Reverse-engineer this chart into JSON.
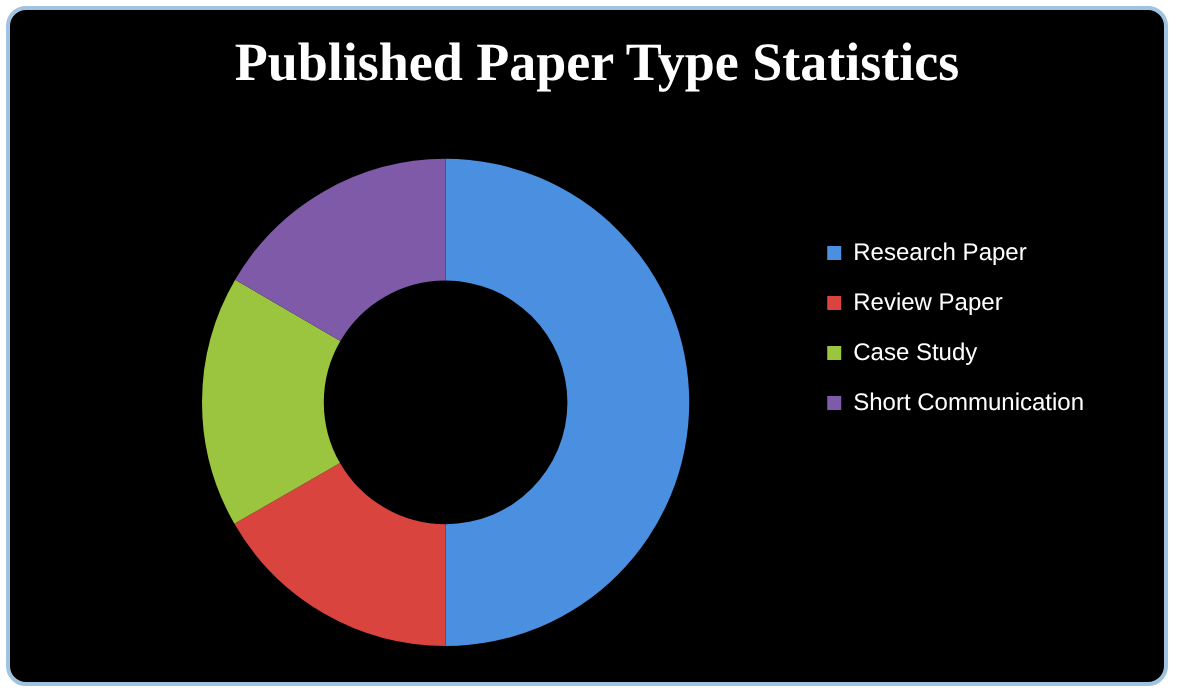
{
  "chart_data": {
    "type": "donut",
    "title": "Published Paper Type Statistics",
    "categories": [
      "Research Paper",
      "Review Paper",
      "Case Study",
      "Short Communication"
    ],
    "values": [
      50,
      16.7,
      16.7,
      16.6
    ],
    "colors": [
      "#4a8fe0",
      "#d9443f",
      "#9bc43f",
      "#7f5aa8"
    ],
    "legend": "right"
  }
}
